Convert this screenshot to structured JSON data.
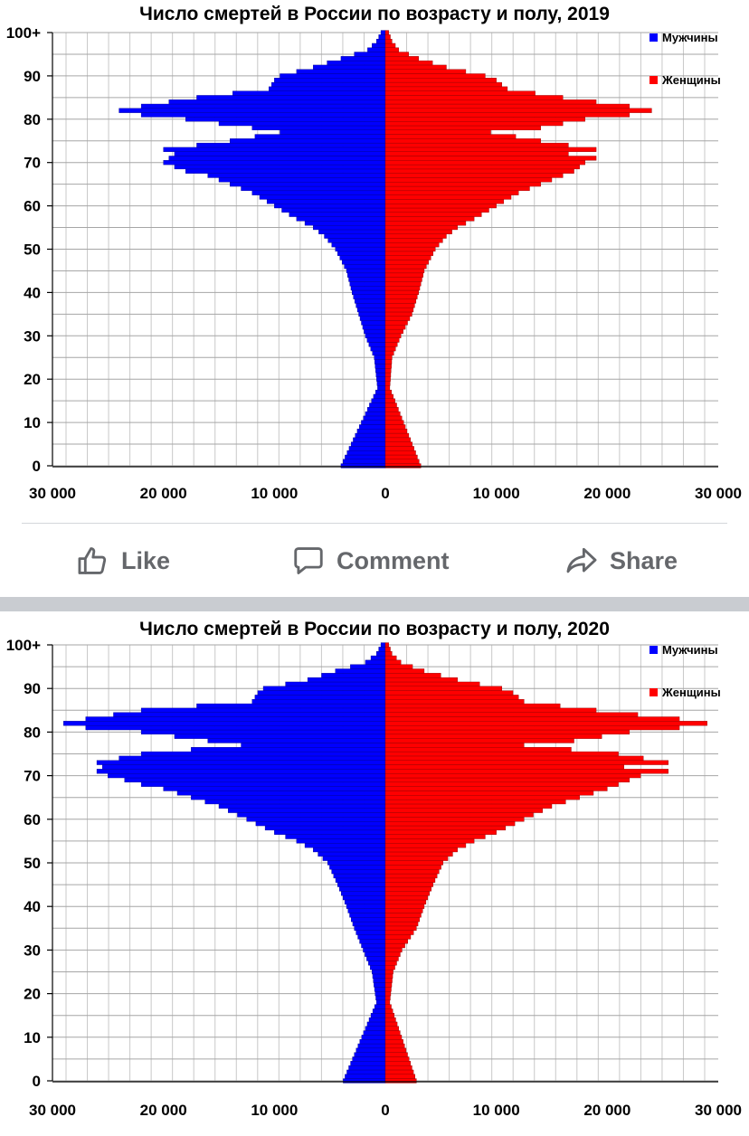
{
  "colors": {
    "male": "#0000ff",
    "female": "#ff0000",
    "action_text": "#65676b",
    "grid": "#a6a6a6"
  },
  "chart_data": [
    {
      "type": "bar",
      "orientation": "horizontal",
      "chart_kind": "population pyramid",
      "title": "Число смертей в России по возрасту и полу, 2019",
      "y_tick_labels": [
        "0",
        "10",
        "20",
        "30",
        "40",
        "50",
        "60",
        "70",
        "80",
        "90",
        "100+"
      ],
      "x_tick_labels": [
        "30 000",
        "20 000",
        "10 000",
        "0",
        "10 000",
        "20 000",
        "30 000"
      ],
      "xlim": [
        -30000,
        30000
      ],
      "ylim": [
        0,
        100
      ],
      "legend_position": "top-right",
      "series": [
        {
          "name": "Мужчины",
          "color": "#0000ff",
          "ages": [
            [
              0,
              4000
            ],
            [
              18,
              700
            ],
            [
              25,
              1000
            ],
            [
              30,
              1800
            ],
            [
              35,
              2400
            ],
            [
              40,
              3000
            ],
            [
              45,
              3500
            ],
            [
              50,
              4500
            ],
            [
              53,
              5500
            ],
            [
              55,
              6500
            ],
            [
              57,
              8000
            ],
            [
              60,
              10000
            ],
            [
              63,
              12000
            ],
            [
              65,
              14000
            ],
            [
              67,
              16000
            ],
            [
              68,
              18000
            ],
            [
              70,
              20000
            ],
            [
              71,
              19500
            ],
            [
              72,
              19000
            ],
            [
              73,
              20000
            ],
            [
              75,
              14000
            ],
            [
              77,
              9500
            ],
            [
              78,
              12000
            ],
            [
              80,
              18000
            ],
            [
              81,
              22000
            ],
            [
              82,
              24000
            ],
            [
              83,
              22000
            ],
            [
              85,
              17000
            ],
            [
              87,
              10500
            ],
            [
              89,
              10000
            ],
            [
              90,
              9500
            ],
            [
              92,
              6500
            ],
            [
              94,
              4000
            ],
            [
              96,
              1600
            ],
            [
              98,
              800
            ],
            [
              100,
              400
            ]
          ]
        },
        {
          "name": "Женщины",
          "color": "#ff0000",
          "ages": [
            [
              0,
              3200
            ],
            [
              18,
              400
            ],
            [
              25,
              600
            ],
            [
              30,
              1400
            ],
            [
              35,
              2400
            ],
            [
              40,
              3000
            ],
            [
              45,
              3500
            ],
            [
              50,
              4500
            ],
            [
              53,
              5500
            ],
            [
              55,
              6500
            ],
            [
              57,
              8000
            ],
            [
              60,
              10000
            ],
            [
              63,
              12000
            ],
            [
              65,
              14000
            ],
            [
              67,
              16000
            ],
            [
              68,
              17000
            ],
            [
              70,
              18000
            ],
            [
              71,
              19000
            ],
            [
              72,
              16500
            ],
            [
              73,
              19000
            ],
            [
              75,
              14000
            ],
            [
              77,
              9500
            ],
            [
              78,
              14000
            ],
            [
              80,
              18000
            ],
            [
              81,
              22000
            ],
            [
              82,
              24000
            ],
            [
              83,
              22000
            ],
            [
              85,
              16000
            ],
            [
              87,
              11000
            ],
            [
              89,
              10000
            ],
            [
              90,
              9000
            ],
            [
              92,
              5500
            ],
            [
              94,
              3000
            ],
            [
              96,
              1200
            ],
            [
              98,
              600
            ],
            [
              100,
              300
            ]
          ]
        }
      ]
    },
    {
      "type": "bar",
      "orientation": "horizontal",
      "chart_kind": "population pyramid",
      "title": "Число смертей в России по возрасту и полу, 2020",
      "y_tick_labels": [
        "0",
        "10",
        "20",
        "30",
        "40",
        "50",
        "60",
        "70",
        "80",
        "90",
        "100+"
      ],
      "x_tick_labels": [
        "30 000",
        "20 000",
        "10 000",
        "0",
        "10 000",
        "20 000",
        "30 000"
      ],
      "xlim": [
        -30000,
        30000
      ],
      "ylim": [
        0,
        100
      ],
      "legend_position": "top-right",
      "series": [
        {
          "name": "Мужчины",
          "color": "#0000ff",
          "ages": [
            [
              0,
              3800
            ],
            [
              18,
              800
            ],
            [
              25,
              1200
            ],
            [
              30,
              2000
            ],
            [
              35,
              2800
            ],
            [
              40,
              3500
            ],
            [
              45,
              4300
            ],
            [
              50,
              5200
            ],
            [
              53,
              6500
            ],
            [
              55,
              8000
            ],
            [
              57,
              10000
            ],
            [
              60,
              12500
            ],
            [
              63,
              15000
            ],
            [
              65,
              17500
            ],
            [
              67,
              20000
            ],
            [
              68,
              22000
            ],
            [
              70,
              25000
            ],
            [
              71,
              26000
            ],
            [
              72,
              25500
            ],
            [
              73,
              26000
            ],
            [
              75,
              22000
            ],
            [
              77,
              13000
            ],
            [
              78,
              16000
            ],
            [
              80,
              22000
            ],
            [
              81,
              27000
            ],
            [
              82,
              29000
            ],
            [
              83,
              27000
            ],
            [
              85,
              22000
            ],
            [
              87,
              12000
            ],
            [
              89,
              11500
            ],
            [
              90,
              11000
            ],
            [
              92,
              7000
            ],
            [
              94,
              4500
            ],
            [
              96,
              1800
            ],
            [
              98,
              800
            ],
            [
              100,
              400
            ]
          ]
        },
        {
          "name": "Женщины",
          "color": "#ff0000",
          "ages": [
            [
              0,
              2800
            ],
            [
              18,
              400
            ],
            [
              25,
              700
            ],
            [
              30,
              1500
            ],
            [
              35,
              2800
            ],
            [
              40,
              3500
            ],
            [
              45,
              4300
            ],
            [
              50,
              5200
            ],
            [
              53,
              6500
            ],
            [
              55,
              8000
            ],
            [
              57,
              10000
            ],
            [
              60,
              12500
            ],
            [
              63,
              15000
            ],
            [
              65,
              17500
            ],
            [
              67,
              20000
            ],
            [
              68,
              21000
            ],
            [
              70,
              23000
            ],
            [
              71,
              25500
            ],
            [
              72,
              21500
            ],
            [
              73,
              25500
            ],
            [
              75,
              21000
            ],
            [
              77,
              12500
            ],
            [
              78,
              17000
            ],
            [
              80,
              22000
            ],
            [
              81,
              26500
            ],
            [
              82,
              29000
            ],
            [
              83,
              26500
            ],
            [
              85,
              19000
            ],
            [
              87,
              12500
            ],
            [
              89,
              11500
            ],
            [
              90,
              10500
            ],
            [
              92,
              6500
            ],
            [
              94,
              3500
            ],
            [
              96,
              1400
            ],
            [
              98,
              600
            ],
            [
              100,
              300
            ]
          ]
        }
      ]
    }
  ],
  "actions": {
    "like": "Like",
    "comment": "Comment",
    "share": "Share"
  }
}
